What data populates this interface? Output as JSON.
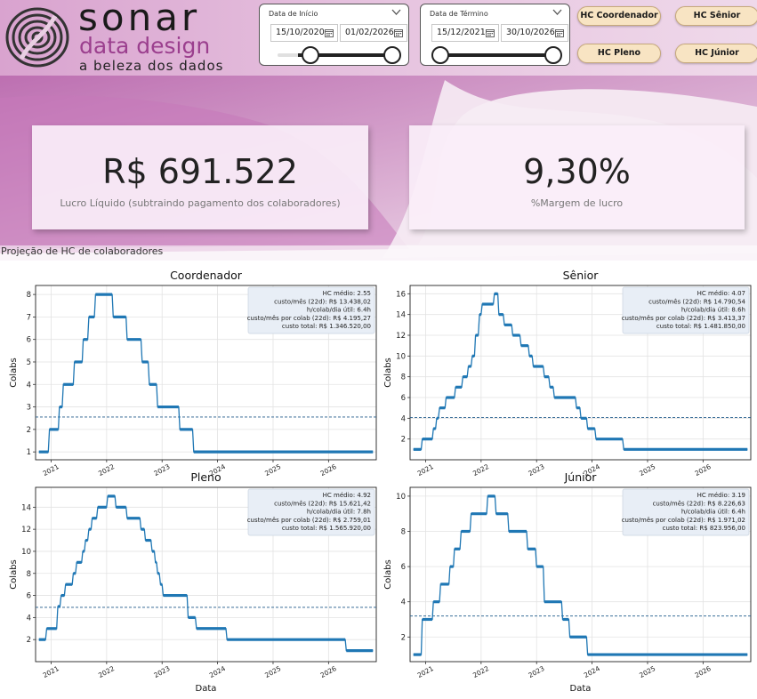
{
  "logo": {
    "brand": "sonar",
    "subtitle": "data design",
    "tagline": "a beleza dos dados"
  },
  "slicers": [
    {
      "title": "Data de Início",
      "from": "15/10/2020",
      "to": "01/02/2026"
    },
    {
      "title": "Data de Término",
      "from": "15/12/2021",
      "to": "30/10/2026"
    }
  ],
  "buttons": {
    "coordenador": "HC Coordenador",
    "senior": "HC Sênior",
    "pleno": "HC Pleno",
    "junior": "HC Júnior"
  },
  "kpis": {
    "lucro": {
      "value": "R$ 691.522",
      "label": "Lucro Líquido (subtraindo pagamento dos colaboradores)"
    },
    "margem": {
      "value": "9,30%",
      "label": "%Margem de lucro"
    }
  },
  "section_title": "Projeção de HC de colaboradores",
  "colors": {
    "line": "#1f77b4",
    "mean": "#1f5a8a",
    "accent": "#9b3f8e",
    "button_bg": "#f8e4c3"
  },
  "icons": [
    "chevron-down-icon",
    "calendar-icon"
  ],
  "chart_data": [
    {
      "type": "line",
      "title": "Coordenador",
      "xlabel": "",
      "ylabel": "Colabs",
      "x_ticks": [
        "2021",
        "2022",
        "2023",
        "2024",
        "2025",
        "2026"
      ],
      "y_ticks": [
        1,
        2,
        3,
        4,
        5,
        6,
        7,
        8
      ],
      "ylim": [
        0.65,
        8.4
      ],
      "mean": 2.55,
      "grid": true,
      "stats": [
        "HC médio: 2.55",
        "custo/mês (22d): R$ 13.438,02",
        "h/colab/dia útil: 6.4h",
        "custo/mês por colab (22d): R$ 4.195,27",
        "custo total: R$ 1.346.520,00"
      ],
      "points": [
        [
          2020.78,
          1
        ],
        [
          2020.95,
          1
        ],
        [
          2020.97,
          2
        ],
        [
          2021.13,
          2
        ],
        [
          2021.15,
          3
        ],
        [
          2021.2,
          3
        ],
        [
          2021.22,
          4
        ],
        [
          2021.4,
          4
        ],
        [
          2021.42,
          5
        ],
        [
          2021.56,
          5
        ],
        [
          2021.58,
          6
        ],
        [
          2021.66,
          6
        ],
        [
          2021.68,
          7
        ],
        [
          2021.78,
          7
        ],
        [
          2021.8,
          8
        ],
        [
          2022.1,
          8
        ],
        [
          2022.12,
          7
        ],
        [
          2022.35,
          7
        ],
        [
          2022.37,
          6
        ],
        [
          2022.62,
          6
        ],
        [
          2022.64,
          5
        ],
        [
          2022.75,
          5
        ],
        [
          2022.77,
          4
        ],
        [
          2022.9,
          4
        ],
        [
          2022.92,
          3
        ],
        [
          2023.3,
          3
        ],
        [
          2023.32,
          2
        ],
        [
          2023.55,
          2
        ],
        [
          2023.57,
          1
        ],
        [
          2026.8,
          1
        ]
      ]
    },
    {
      "type": "line",
      "title": "Sênior",
      "xlabel": "",
      "ylabel": "Colabs",
      "x_ticks": [
        "2021",
        "2022",
        "2023",
        "2024",
        "2025",
        "2026"
      ],
      "y_ticks": [
        2,
        4,
        6,
        8,
        10,
        12,
        14,
        16
      ],
      "ylim": [
        0,
        16.8
      ],
      "mean": 4.07,
      "grid": true,
      "stats": [
        "HC médio: 4.07",
        "custo/mês (22d): R$ 14.790,54",
        "h/colab/dia útil: 8.6h",
        "custo/mês por colab (22d): R$ 3.413,37",
        "custo total: R$ 1.481.850,00"
      ],
      "points": [
        [
          2020.78,
          1
        ],
        [
          2020.92,
          1
        ],
        [
          2020.94,
          2
        ],
        [
          2021.12,
          2
        ],
        [
          2021.14,
          3
        ],
        [
          2021.18,
          3
        ],
        [
          2021.2,
          4
        ],
        [
          2021.23,
          4
        ],
        [
          2021.25,
          5
        ],
        [
          2021.35,
          5
        ],
        [
          2021.37,
          6
        ],
        [
          2021.52,
          6
        ],
        [
          2021.54,
          7
        ],
        [
          2021.65,
          7
        ],
        [
          2021.67,
          8
        ],
        [
          2021.75,
          8
        ],
        [
          2021.77,
          9
        ],
        [
          2021.82,
          9
        ],
        [
          2021.84,
          10
        ],
        [
          2021.88,
          10
        ],
        [
          2021.9,
          12
        ],
        [
          2021.95,
          12
        ],
        [
          2021.97,
          14
        ],
        [
          2022.0,
          14
        ],
        [
          2022.02,
          15
        ],
        [
          2022.22,
          15
        ],
        [
          2022.24,
          16
        ],
        [
          2022.3,
          16
        ],
        [
          2022.32,
          14
        ],
        [
          2022.4,
          14
        ],
        [
          2022.42,
          13
        ],
        [
          2022.55,
          13
        ],
        [
          2022.57,
          12
        ],
        [
          2022.7,
          12
        ],
        [
          2022.72,
          11
        ],
        [
          2022.85,
          11
        ],
        [
          2022.87,
          10
        ],
        [
          2022.92,
          10
        ],
        [
          2022.94,
          9
        ],
        [
          2023.12,
          9
        ],
        [
          2023.14,
          8
        ],
        [
          2023.22,
          8
        ],
        [
          2023.24,
          7
        ],
        [
          2023.3,
          7
        ],
        [
          2023.32,
          6
        ],
        [
          2023.7,
          6
        ],
        [
          2023.72,
          5
        ],
        [
          2023.78,
          5
        ],
        [
          2023.8,
          4
        ],
        [
          2023.9,
          4
        ],
        [
          2023.92,
          3
        ],
        [
          2024.05,
          3
        ],
        [
          2024.07,
          2
        ],
        [
          2024.55,
          2
        ],
        [
          2024.57,
          1
        ],
        [
          2026.8,
          1
        ]
      ]
    },
    {
      "type": "line",
      "title": "Pleno",
      "xlabel": "Data",
      "ylabel": "Colabs",
      "x_ticks": [
        "2021",
        "2022",
        "2023",
        "2024",
        "2025",
        "2026"
      ],
      "y_ticks": [
        2,
        4,
        6,
        8,
        10,
        12,
        14
      ],
      "ylim": [
        0,
        15.8
      ],
      "mean": 4.92,
      "grid": true,
      "stats": [
        "HC médio: 4.92",
        "custo/mês (22d): R$ 15.621,42",
        "h/colab/dia útil: 7.8h",
        "custo/mês por colab (22d): R$ 2.759,01",
        "custo total: R$ 1.565.920,00"
      ],
      "points": [
        [
          2020.78,
          2
        ],
        [
          2020.9,
          2
        ],
        [
          2020.92,
          3
        ],
        [
          2021.1,
          3
        ],
        [
          2021.12,
          5
        ],
        [
          2021.16,
          5
        ],
        [
          2021.18,
          6
        ],
        [
          2021.24,
          6
        ],
        [
          2021.26,
          7
        ],
        [
          2021.38,
          7
        ],
        [
          2021.4,
          8
        ],
        [
          2021.44,
          8
        ],
        [
          2021.46,
          9
        ],
        [
          2021.55,
          9
        ],
        [
          2021.57,
          10
        ],
        [
          2021.6,
          10
        ],
        [
          2021.62,
          11
        ],
        [
          2021.66,
          11
        ],
        [
          2021.68,
          12
        ],
        [
          2021.72,
          12
        ],
        [
          2021.74,
          13
        ],
        [
          2021.82,
          13
        ],
        [
          2021.84,
          14
        ],
        [
          2022.0,
          14
        ],
        [
          2022.02,
          15
        ],
        [
          2022.15,
          15
        ],
        [
          2022.17,
          14
        ],
        [
          2022.35,
          14
        ],
        [
          2022.37,
          13
        ],
        [
          2022.6,
          13
        ],
        [
          2022.62,
          12
        ],
        [
          2022.68,
          12
        ],
        [
          2022.7,
          11
        ],
        [
          2022.8,
          11
        ],
        [
          2022.82,
          10
        ],
        [
          2022.86,
          10
        ],
        [
          2022.88,
          9
        ],
        [
          2022.9,
          9
        ],
        [
          2022.92,
          8
        ],
        [
          2022.95,
          8
        ],
        [
          2022.97,
          7
        ],
        [
          2023.0,
          7
        ],
        [
          2023.02,
          6
        ],
        [
          2023.45,
          6
        ],
        [
          2023.47,
          4
        ],
        [
          2023.6,
          4
        ],
        [
          2023.62,
          3
        ],
        [
          2024.15,
          3
        ],
        [
          2024.17,
          2
        ],
        [
          2026.3,
          2
        ],
        [
          2026.32,
          1
        ],
        [
          2026.8,
          1
        ]
      ]
    },
    {
      "type": "line",
      "title": "Júnior",
      "xlabel": "Data",
      "ylabel": "Colabs",
      "x_ticks": [
        "2021",
        "2022",
        "2023",
        "2024",
        "2025",
        "2026"
      ],
      "y_ticks": [
        2,
        4,
        6,
        8,
        10
      ],
      "ylim": [
        0.6,
        10.5
      ],
      "mean": 3.19,
      "grid": true,
      "stats": [
        "HC médio: 3.19",
        "custo/mês (22d): R$ 8.226,63",
        "h/colab/dia útil: 6.4h",
        "custo/mês por colab (22d): R$ 1.971,02",
        "custo total: R$ 823.956,00"
      ],
      "points": [
        [
          2020.78,
          1
        ],
        [
          2020.92,
          1
        ],
        [
          2020.94,
          3
        ],
        [
          2021.12,
          3
        ],
        [
          2021.14,
          4
        ],
        [
          2021.25,
          4
        ],
        [
          2021.27,
          5
        ],
        [
          2021.42,
          5
        ],
        [
          2021.44,
          6
        ],
        [
          2021.5,
          6
        ],
        [
          2021.52,
          7
        ],
        [
          2021.62,
          7
        ],
        [
          2021.64,
          8
        ],
        [
          2021.8,
          8
        ],
        [
          2021.82,
          9
        ],
        [
          2022.1,
          9
        ],
        [
          2022.12,
          10
        ],
        [
          2022.25,
          10
        ],
        [
          2022.27,
          9
        ],
        [
          2022.48,
          9
        ],
        [
          2022.5,
          8
        ],
        [
          2022.82,
          8
        ],
        [
          2022.84,
          7
        ],
        [
          2022.98,
          7
        ],
        [
          2023.0,
          6
        ],
        [
          2023.12,
          6
        ],
        [
          2023.14,
          4
        ],
        [
          2023.45,
          4
        ],
        [
          2023.47,
          3
        ],
        [
          2023.58,
          3
        ],
        [
          2023.6,
          2
        ],
        [
          2023.9,
          2
        ],
        [
          2023.92,
          1
        ],
        [
          2026.8,
          1
        ]
      ]
    }
  ]
}
